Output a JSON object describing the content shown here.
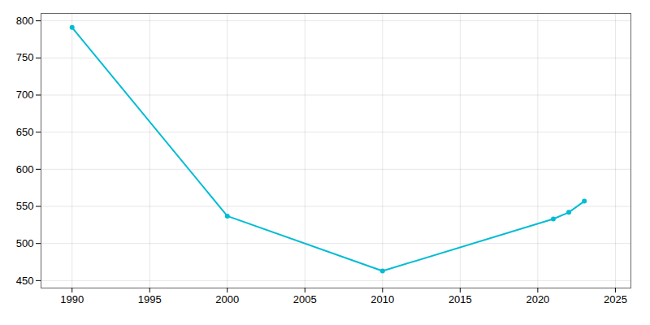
{
  "chart_data": {
    "type": "line",
    "x": [
      1990,
      2000,
      2010,
      2021,
      2022,
      2023
    ],
    "values": [
      791,
      537,
      463,
      533,
      542,
      557
    ],
    "color": "#00bcd4",
    "marker": "circle",
    "xlim": [
      1988,
      2026
    ],
    "ylim": [
      440,
      810
    ],
    "xticks": [
      1990,
      1995,
      2000,
      2005,
      2010,
      2015,
      2020,
      2025
    ],
    "yticks": [
      450,
      500,
      550,
      600,
      650,
      700,
      750,
      800
    ],
    "grid": true
  }
}
